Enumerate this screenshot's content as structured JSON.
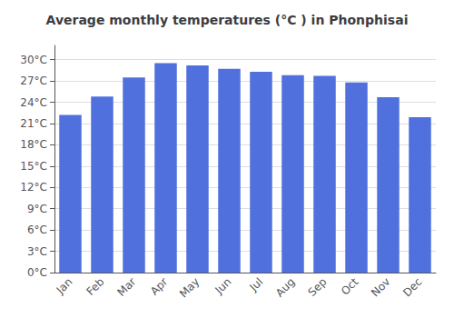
{
  "chart_data": {
    "type": "bar",
    "title": "Average monthly temperatures (°C ) in Phonphisai",
    "categories": [
      "Jan",
      "Feb",
      "Mar",
      "Apr",
      "May",
      "Jun",
      "Jul",
      "Aug",
      "Sep",
      "Oct",
      "Nov",
      "Dec"
    ],
    "values": [
      22.2,
      24.8,
      27.5,
      29.5,
      29.2,
      28.7,
      28.3,
      27.8,
      27.7,
      26.8,
      24.7,
      21.9
    ],
    "ylim": [
      0,
      32
    ],
    "yticks": [
      {
        "value": 0,
        "label": "0°C"
      },
      {
        "value": 3,
        "label": "3°C"
      },
      {
        "value": 6,
        "label": "6°C"
      },
      {
        "value": 9,
        "label": "9°C"
      },
      {
        "value": 12,
        "label": "12°C"
      },
      {
        "value": 15,
        "label": "15°C"
      },
      {
        "value": 18,
        "label": "18°C"
      },
      {
        "value": 21,
        "label": "21°C"
      },
      {
        "value": 24,
        "label": "24°C"
      },
      {
        "value": 27,
        "label": "27°C"
      },
      {
        "value": 30,
        "label": "30°C"
      }
    ],
    "grid": true
  }
}
